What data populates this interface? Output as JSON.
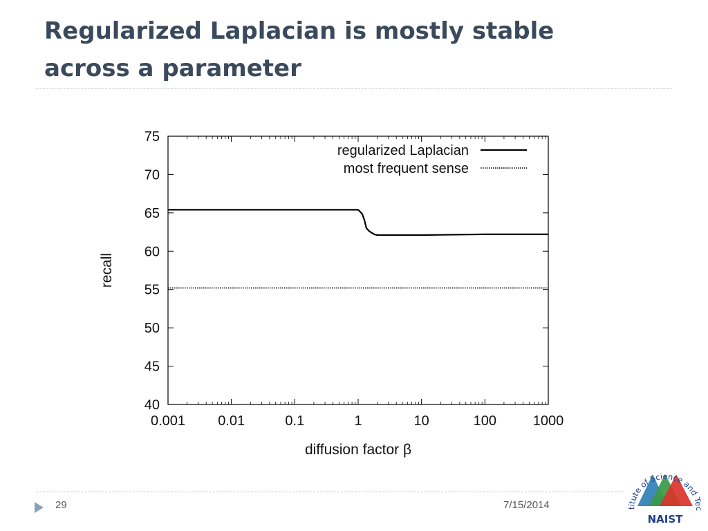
{
  "slide": {
    "title_line1": "Regularized Laplacian is mostly stable",
    "title_line2": "across a parameter",
    "page_number": "29",
    "date": "7/15/2014"
  },
  "logo": {
    "name": "NAIST",
    "text": "Nara Institute of Science and Technology",
    "colors": [
      "#2f7fb9",
      "#3a9a45",
      "#d9342b"
    ]
  },
  "chart_data": {
    "type": "line",
    "xscale": "log",
    "xlabel": "diffusion factor β",
    "ylabel": "recall",
    "xlim": [
      0.001,
      1000
    ],
    "ylim": [
      40,
      75
    ],
    "xticks": [
      0.001,
      0.01,
      0.1,
      1,
      10,
      100,
      1000
    ],
    "xtick_labels": [
      "0.001",
      "0.01",
      "0.1",
      "1",
      "10",
      "100",
      "1000"
    ],
    "yticks": [
      40,
      45,
      50,
      55,
      60,
      65,
      70,
      75
    ],
    "ytick_labels": [
      "40",
      "45",
      "50",
      "55",
      "60",
      "65",
      "70",
      "75"
    ],
    "grid": false,
    "legend_position": "top-right",
    "series": [
      {
        "name": "regularized Laplacian",
        "style": "solid",
        "x": [
          0.001,
          0.01,
          0.1,
          1.0,
          1.15,
          1.25,
          1.35,
          1.5,
          1.8,
          2.0,
          10,
          100,
          1000
        ],
        "y": [
          65.4,
          65.4,
          65.4,
          65.4,
          64.9,
          64.1,
          63.0,
          62.6,
          62.2,
          62.1,
          62.1,
          62.2,
          62.2
        ]
      },
      {
        "name": "most frequent sense",
        "style": "dotted",
        "x": [
          0.001,
          1000
        ],
        "y": [
          55.2,
          55.2
        ]
      }
    ]
  }
}
